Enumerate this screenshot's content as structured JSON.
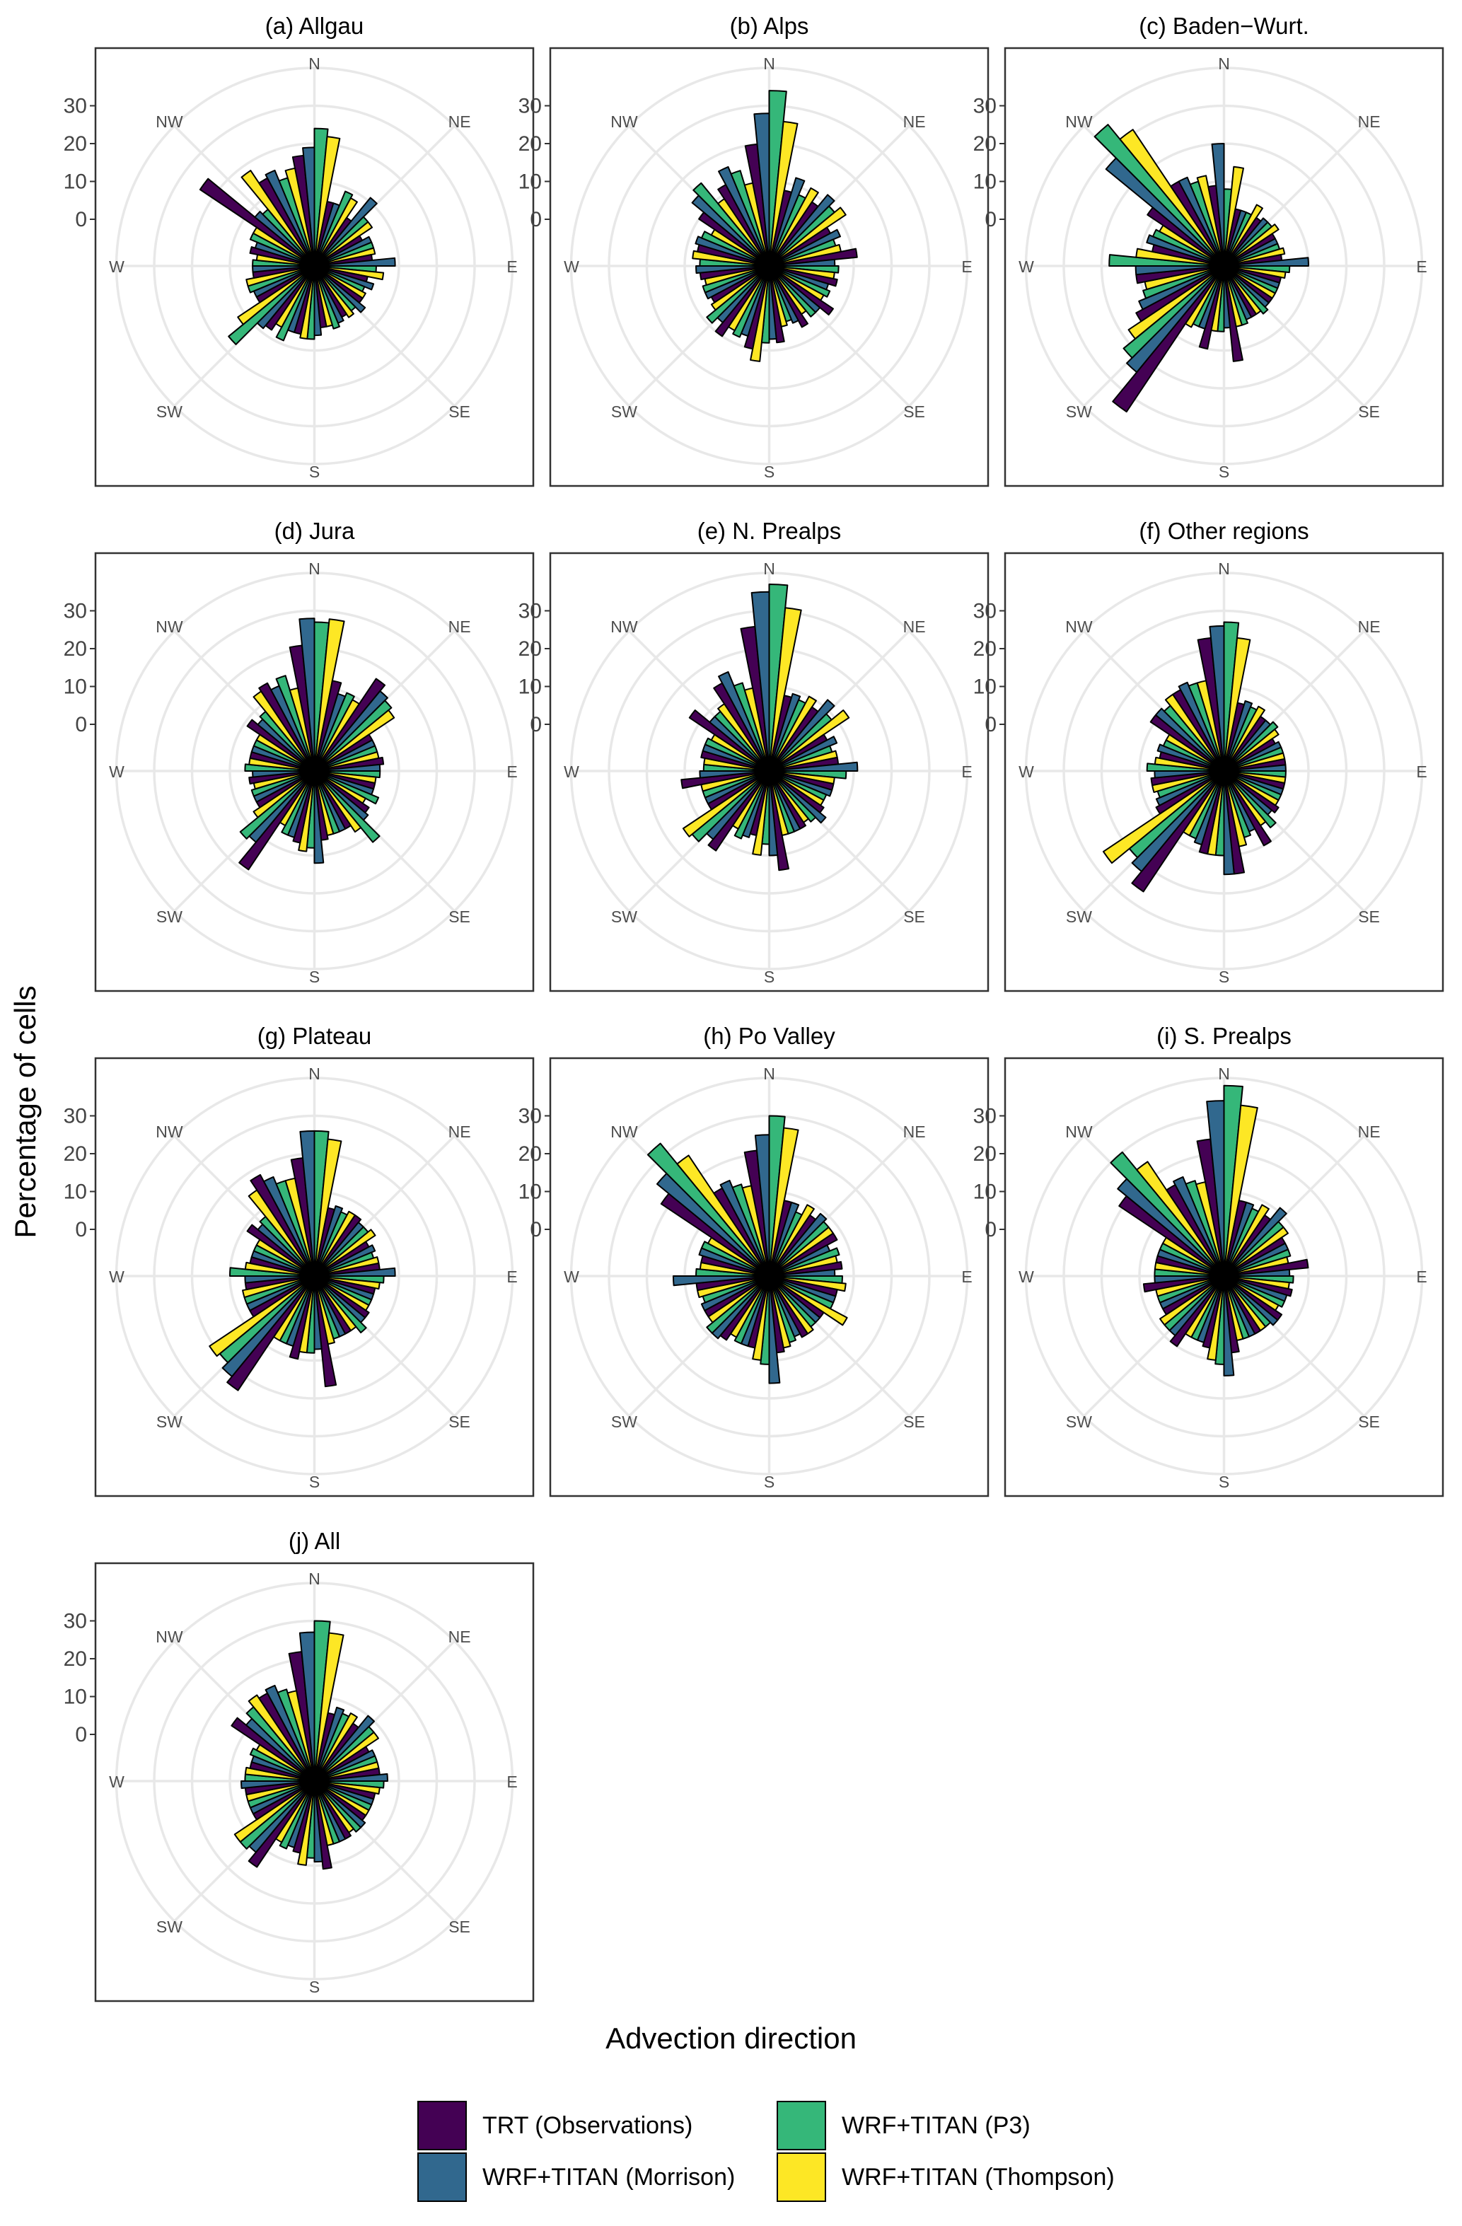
{
  "figure": {
    "xlabel": "Advection direction",
    "ylabel": "Percentage of cells",
    "directions": [
      "N",
      "NE",
      "E",
      "SE",
      "S",
      "SW",
      "W",
      "NW"
    ],
    "radial_ticks": [
      "30",
      "20",
      "10",
      "0"
    ]
  },
  "colors": {
    "TRT": "#440154",
    "Morrison": "#31688e",
    "P3": "#35b779",
    "Thompson": "#fde725",
    "grid": "#e8e8e8",
    "frame": "#333333"
  },
  "legend": [
    {
      "key": "TRT",
      "label": "TRT (Observations)"
    },
    {
      "key": "Morrison",
      "label": "WRF+TITAN (Morrison)"
    },
    {
      "key": "P3",
      "label": "WRF+TITAN (P3)"
    },
    {
      "key": "Thompson",
      "label": "WRF+TITAN (Thompson)"
    }
  ],
  "chart_data": [
    {
      "type": "polar-bar",
      "title": "(a) Allgau",
      "sectors_deg": [
        0,
        22.5,
        45,
        67.5,
        90,
        112.5,
        135,
        157.5,
        180,
        202.5,
        225,
        247.5,
        270,
        292.5,
        315,
        337.5
      ],
      "rmax": 40,
      "series": [
        {
          "key": "TRT",
          "values": [
            17,
            5,
            3,
            2,
            3,
            2,
            3,
            3,
            4,
            6,
            8,
            5,
            4,
            5,
            24,
            14
          ]
        },
        {
          "key": "Morrison",
          "values": [
            19,
            5,
            11,
            4,
            9,
            4,
            5,
            4,
            6,
            6,
            9,
            5,
            4,
            4,
            8,
            15
          ]
        },
        {
          "key": "P3",
          "values": [
            24,
            9,
            6,
            4,
            4,
            2,
            3,
            5,
            7,
            9,
            17,
            6,
            4,
            6,
            7,
            12
          ]
        },
        {
          "key": "Thompson",
          "values": [
            22,
            8,
            6,
            4,
            6,
            3,
            4,
            4,
            7,
            6,
            12,
            6,
            3,
            6,
            18,
            14
          ]
        }
      ]
    },
    {
      "type": "polar-bar",
      "title": "(b) Alps",
      "sectors_deg": [
        0,
        22.5,
        45,
        67.5,
        90,
        112.5,
        135,
        157.5,
        180,
        202.5,
        225,
        247.5,
        270,
        292.5,
        315,
        337.5
      ],
      "rmax": 40,
      "series": [
        {
          "key": "TRT",
          "values": [
            20,
            8,
            8,
            6,
            11,
            6,
            8,
            6,
            8,
            10,
            10,
            5,
            6,
            7,
            10,
            12
          ]
        },
        {
          "key": "Morrison",
          "values": [
            28,
            12,
            12,
            8,
            5,
            4,
            5,
            4,
            7,
            7,
            7,
            6,
            7,
            8,
            14,
            16
          ]
        },
        {
          "key": "P3",
          "values": [
            34,
            8,
            10,
            6,
            6,
            5,
            5,
            3,
            8,
            8,
            9,
            6,
            6,
            7,
            16,
            14
          ]
        },
        {
          "key": "Thompson",
          "values": [
            26,
            11,
            12,
            7,
            5,
            4,
            3,
            4,
            13,
            7,
            6,
            5,
            8,
            5,
            9,
            10
          ]
        }
      ]
    },
    {
      "type": "polar-bar",
      "title": "(c) Baden−Wurt.",
      "sectors_deg": [
        0,
        22.5,
        45,
        67.5,
        90,
        112.5,
        135,
        157.5,
        180,
        202.5,
        225,
        247.5,
        270,
        292.5,
        315,
        337.5
      ],
      "rmax": 40,
      "series": [
        {
          "key": "TRT",
          "values": [
            9,
            3,
            3,
            3,
            3,
            3,
            3,
            3,
            13,
            10,
            34,
            14,
            11,
            7,
            12,
            13
          ]
        },
        {
          "key": "Morrison",
          "values": [
            20,
            3,
            4,
            3,
            10,
            3,
            3,
            3,
            4,
            5,
            24,
            12,
            11,
            9,
            28,
            13
          ]
        },
        {
          "key": "P3",
          "values": [
            8,
            3,
            4,
            3,
            5,
            3,
            4,
            4,
            5,
            5,
            22,
            10,
            18,
            8,
            36,
            11
          ]
        },
        {
          "key": "Thompson",
          "values": [
            14,
            6,
            5,
            4,
            4,
            3,
            3,
            4,
            5,
            6,
            18,
            9,
            11,
            7,
            31,
            12
          ]
        }
      ]
    },
    {
      "type": "polar-bar",
      "title": "(d) Jura",
      "sectors_deg": [
        0,
        22.5,
        45,
        67.5,
        90,
        112.5,
        135,
        157.5,
        180,
        202.5,
        225,
        247.5,
        270,
        292.5,
        315,
        337.5
      ],
      "rmax": 40,
      "series": [
        {
          "key": "TRT",
          "values": [
            21,
            12,
            17,
            5,
            6,
            4,
            5,
            5,
            6,
            7,
            19,
            5,
            5,
            5,
            9,
            14
          ]
        },
        {
          "key": "Morrison",
          "values": [
            28,
            9,
            15,
            5,
            5,
            4,
            6,
            5,
            12,
            6,
            12,
            5,
            4,
            5,
            7,
            12
          ]
        },
        {
          "key": "P3",
          "values": [
            27,
            10,
            14,
            5,
            5,
            6,
            12,
            5,
            8,
            6,
            13,
            5,
            6,
            5,
            8,
            14
          ]
        },
        {
          "key": "Thompson",
          "values": [
            28,
            9,
            13,
            5,
            4,
            3,
            7,
            5,
            9,
            4,
            7,
            4,
            5,
            5,
            13,
            10
          ]
        }
      ]
    },
    {
      "type": "polar-bar",
      "title": "(e) N. Prealps",
      "sectors_deg": [
        0,
        22.5,
        45,
        67.5,
        90,
        112.5,
        135,
        157.5,
        180,
        202.5,
        225,
        247.5,
        270,
        292.5,
        315,
        337.5
      ],
      "rmax": 40,
      "series": [
        {
          "key": "TRT",
          "values": [
            26,
            8,
            8,
            5,
            6,
            5,
            5,
            5,
            14,
            5,
            13,
            6,
            11,
            6,
            13,
            14
          ]
        },
        {
          "key": "Morrison",
          "values": [
            35,
            9,
            12,
            7,
            11,
            5,
            7,
            5,
            10,
            6,
            11,
            6,
            6,
            6,
            8,
            16
          ]
        },
        {
          "key": "P3",
          "values": [
            37,
            8,
            9,
            5,
            8,
            4,
            5,
            5,
            7,
            7,
            14,
            6,
            5,
            6,
            8,
            12
          ]
        },
        {
          "key": "Thompson",
          "values": [
            31,
            10,
            13,
            6,
            5,
            4,
            4,
            5,
            10,
            5,
            15,
            6,
            5,
            5,
            9,
            10
          ]
        }
      ]
    },
    {
      "type": "polar-bar",
      "title": "(f) Other regions",
      "sectors_deg": [
        0,
        22.5,
        45,
        67.5,
        90,
        112.5,
        135,
        157.5,
        180,
        202.5,
        225,
        247.5,
        270,
        292.5,
        315,
        337.5
      ],
      "rmax": 40,
      "series": [
        {
          "key": "TRT",
          "values": [
            23,
            6,
            5,
            3,
            4,
            4,
            5,
            10,
            15,
            10,
            26,
            8,
            7,
            5,
            11,
            12
          ]
        },
        {
          "key": "Morrison",
          "values": [
            26,
            7,
            5,
            4,
            4,
            4,
            4,
            5,
            15,
            8,
            22,
            7,
            6,
            6,
            11,
            13
          ]
        },
        {
          "key": "P3",
          "values": [
            27,
            6,
            6,
            4,
            4,
            4,
            7,
            6,
            10,
            7,
            20,
            6,
            8,
            5,
            10,
            12
          ]
        },
        {
          "key": "Thompson",
          "values": [
            23,
            7,
            5,
            4,
            4,
            4,
            5,
            8,
            10,
            7,
            26,
            7,
            6,
            5,
            12,
            12
          ]
        }
      ]
    },
    {
      "type": "polar-bar",
      "title": "(g) Plateau",
      "sectors_deg": [
        0,
        22.5,
        45,
        67.5,
        90,
        112.5,
        135,
        157.5,
        180,
        202.5,
        225,
        247.5,
        270,
        292.5,
        315,
        337.5
      ],
      "rmax": 40,
      "series": [
        {
          "key": "TRT",
          "values": [
            19,
            6,
            7,
            4,
            5,
            4,
            5,
            5,
            17,
            10,
            24,
            7,
            6,
            5,
            9,
            18
          ]
        },
        {
          "key": "Morrison",
          "values": [
            26,
            7,
            6,
            5,
            9,
            4,
            5,
            5,
            7,
            7,
            22,
            7,
            6,
            5,
            7,
            16
          ]
        },
        {
          "key": "P3",
          "values": [
            26,
            6,
            6,
            4,
            6,
            4,
            7,
            5,
            8,
            7,
            20,
            7,
            10,
            5,
            8,
            14
          ]
        },
        {
          "key": "Thompson",
          "values": [
            24,
            7,
            7,
            5,
            5,
            4,
            5,
            6,
            8,
            7,
            21,
            7,
            6,
            5,
            15,
            14
          ]
        }
      ]
    },
    {
      "type": "polar-bar",
      "title": "(h) Po Valley",
      "sectors_deg": [
        0,
        22.5,
        45,
        67.5,
        90,
        112.5,
        135,
        157.5,
        180,
        202.5,
        225,
        247.5,
        270,
        292.5,
        315,
        337.5
      ],
      "rmax": 40,
      "series": [
        {
          "key": "TRT",
          "values": [
            21,
            8,
            7,
            8,
            7,
            6,
            5,
            6,
            8,
            7,
            8,
            7,
            7,
            6,
            22,
            14
          ]
        },
        {
          "key": "Morrison",
          "values": [
            25,
            8,
            9,
            5,
            5,
            6,
            5,
            5,
            16,
            7,
            9,
            7,
            13,
            7,
            26,
            15
          ]
        },
        {
          "key": "P3",
          "values": [
            30,
            6,
            8,
            7,
            7,
            6,
            5,
            6,
            11,
            7,
            9,
            6,
            7,
            7,
            33,
            13
          ]
        },
        {
          "key": "Thompson",
          "values": [
            27,
            9,
            8,
            6,
            8,
            11,
            6,
            7,
            10,
            6,
            7,
            7,
            6,
            6,
            26,
            12
          ]
        }
      ]
    },
    {
      "type": "polar-bar",
      "title": "(i) S. Prealps",
      "sectors_deg": [
        0,
        22.5,
        45,
        67.5,
        90,
        112.5,
        135,
        157.5,
        180,
        202.5,
        225,
        247.5,
        270,
        292.5,
        315,
        337.5
      ],
      "rmax": 40,
      "series": [
        {
          "key": "TRT",
          "values": [
            24,
            8,
            7,
            6,
            10,
            6,
            6,
            5,
            8,
            7,
            10,
            6,
            9,
            6,
            21,
            15
          ]
        },
        {
          "key": "Morrison",
          "values": [
            34,
            8,
            11,
            6,
            5,
            5,
            6,
            5,
            14,
            6,
            8,
            6,
            6,
            6,
            24,
            16
          ]
        },
        {
          "key": "P3",
          "values": [
            38,
            7,
            8,
            6,
            6,
            5,
            5,
            5,
            11,
            6,
            8,
            6,
            6,
            6,
            30,
            14
          ]
        },
        {
          "key": "Thompson",
          "values": [
            33,
            9,
            8,
            5,
            5,
            4,
            5,
            5,
            10,
            6,
            8,
            6,
            6,
            6,
            24,
            13
          ]
        }
      ]
    },
    {
      "type": "polar-bar",
      "title": "(j) All",
      "sectors_deg": [
        0,
        22.5,
        45,
        67.5,
        90,
        112.5,
        135,
        157.5,
        180,
        202.5,
        225,
        247.5,
        270,
        292.5,
        315,
        337.5
      ],
      "rmax": 40,
      "series": [
        {
          "key": "TRT",
          "values": [
            22,
            6,
            6,
            4,
            5,
            4,
            4,
            5,
            11,
            7,
            15,
            6,
            6,
            5,
            14,
            14
          ]
        },
        {
          "key": "Morrison",
          "values": [
            27,
            8,
            10,
            5,
            7,
            4,
            5,
            5,
            9,
            6,
            12,
            6,
            7,
            5,
            11,
            15
          ]
        },
        {
          "key": "P3",
          "values": [
            30,
            7,
            8,
            5,
            6,
            4,
            5,
            5,
            8,
            7,
            13,
            6,
            6,
            6,
            13,
            13
          ]
        },
        {
          "key": "Thompson",
          "values": [
            27,
            8,
            8,
            5,
            5,
            4,
            4,
            5,
            10,
            6,
            13,
            6,
            6,
            5,
            15,
            12
          ]
        }
      ]
    }
  ]
}
